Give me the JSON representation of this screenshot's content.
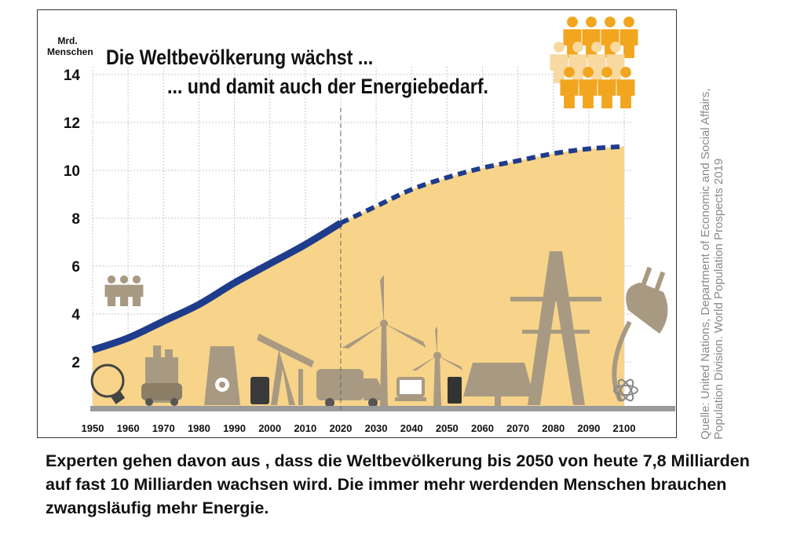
{
  "title_line1": "Die Weltbevölkerung wächst ...",
  "title_line2": "... und damit auch der Energiebedarf.",
  "unit_line1": "Mrd.",
  "unit_line2": "Menschen",
  "source_line1": "Quelle: United Nations, Department of Economic and Social Affairs,",
  "source_line2": "Population Division. World Population Prospects 2019",
  "caption": "Experten gehen davon aus , dass die Weltbevölkerung bis 2050 von heute 7,8 Milliarden auf fast 10 Milliarden wachsen wird. Die immer mehr werdenden Menschen brauchen zwangsläufig mehr Energie.",
  "colors": {
    "historic_line": "#1f3c8c",
    "projection_line": "#1f3c8c",
    "area_fill": "#f7d48a",
    "icons": "#a89a82",
    "people_icons": "#f2a51e",
    "grid": "#c8c8c8"
  },
  "icons": [
    "light-bulb-icon",
    "factory-car-icon",
    "nuclear-plant-icon",
    "oil-pump-icon",
    "oil-barrel-icon",
    "truck-icon",
    "wind-turbine-icon",
    "computer-icon",
    "fuel-pump-icon",
    "solar-panel-icon",
    "power-pylon-icon",
    "power-plug-icon",
    "atom-icon",
    "people-icon"
  ],
  "chart_data": {
    "type": "area",
    "title": "Die Weltbevölkerung wächst ... und damit auch der Energiebedarf.",
    "ylabel": "Mrd. Menschen",
    "xlabel": "",
    "ylim": [
      0,
      14
    ],
    "xlim": [
      1950,
      2100
    ],
    "x_ticks": [
      1950,
      1960,
      1970,
      1980,
      1990,
      2000,
      2010,
      2020,
      2030,
      2040,
      2050,
      2060,
      2070,
      2080,
      2090,
      2100
    ],
    "y_ticks": [
      2,
      4,
      6,
      8,
      10,
      12,
      14
    ],
    "grid": true,
    "reference_line_x": 2020,
    "series": [
      {
        "style": "solid",
        "x": [
          1950,
          1960,
          1970,
          1980,
          1990,
          2000,
          2010,
          2020
        ],
        "y": [
          2.5,
          3.0,
          3.7,
          4.4,
          5.3,
          6.1,
          6.9,
          7.8
        ]
      },
      {
        "style": "dashed",
        "x": [
          2020,
          2030,
          2040,
          2050,
          2060,
          2070,
          2080,
          2090,
          2100
        ],
        "y": [
          7.8,
          8.5,
          9.2,
          9.7,
          10.1,
          10.4,
          10.7,
          10.9,
          11.0
        ]
      }
    ]
  }
}
